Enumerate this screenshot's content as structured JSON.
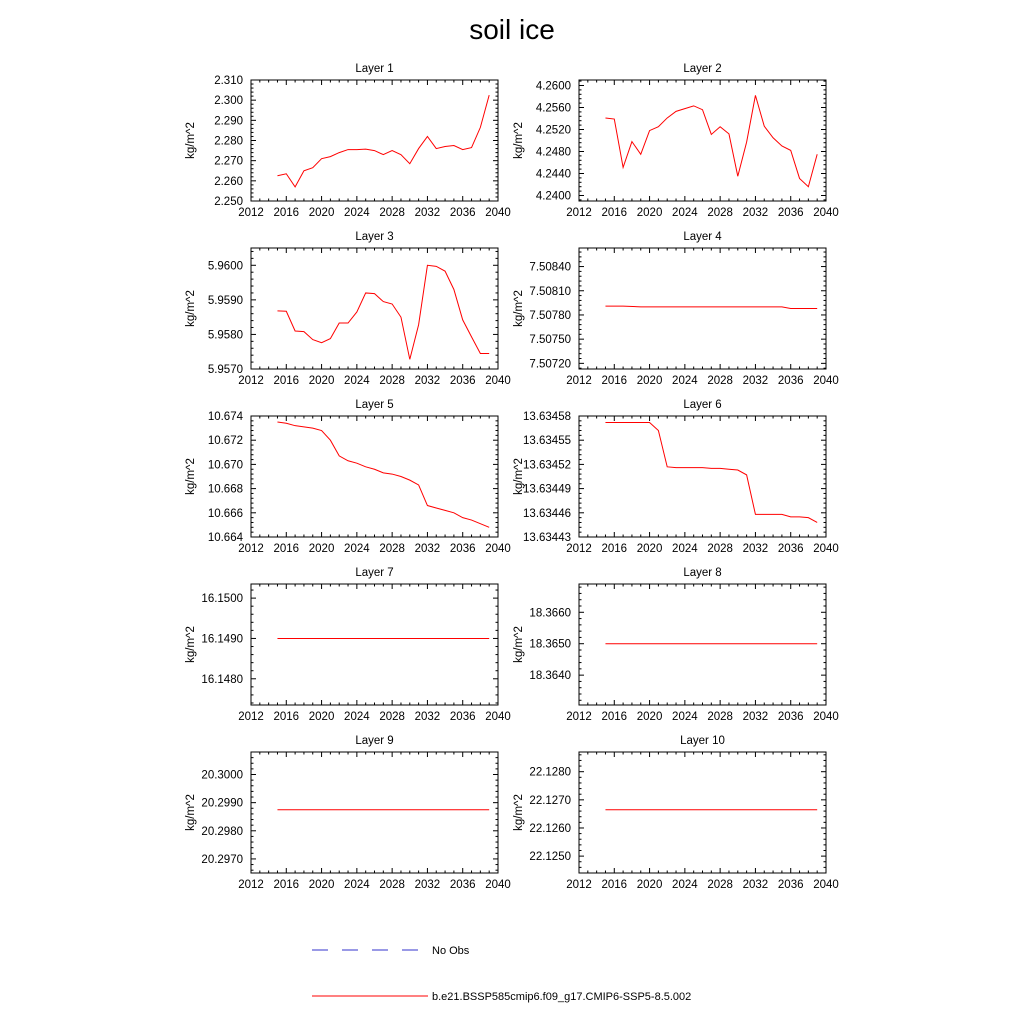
{
  "title": "soil ice",
  "colors": {
    "series": "#ff0000",
    "obs": "#3333cc",
    "axis": "#000000"
  },
  "legend": [
    {
      "label": "No Obs",
      "style": "dashed",
      "color": "#3333cc"
    },
    {
      "label": "b.e21.BSSP585cmip6.f09_g17.CMIP6-SSP5-8.5.002",
      "style": "solid",
      "color": "#ff0000"
    }
  ],
  "chart_data": [
    {
      "type": "line",
      "title": "Layer 1",
      "ylabel": "kg/m^2",
      "xlim": [
        2012,
        2040
      ],
      "ylim": [
        2.25,
        2.31
      ],
      "xticks": [
        2012,
        2016,
        2020,
        2024,
        2028,
        2032,
        2036,
        2040
      ],
      "xtick_labels": [
        "2012",
        "2016",
        "2020",
        "2024",
        "2028",
        "2032",
        "2036",
        "2040"
      ],
      "yticks": [
        2.25,
        2.26,
        2.27,
        2.28,
        2.29,
        2.3,
        2.31
      ],
      "ytick_labels": [
        "2.250",
        "2.260",
        "2.270",
        "2.280",
        "2.290",
        "2.300",
        "2.310"
      ],
      "series": [
        {
          "x": [
            2015,
            2016,
            2017,
            2018,
            2019,
            2020,
            2021,
            2022,
            2023,
            2024,
            2025,
            2026,
            2027,
            2028,
            2029,
            2030,
            2031,
            2032,
            2033,
            2034,
            2035,
            2036,
            2037,
            2038,
            2039
          ],
          "y": [
            2.2625,
            2.2635,
            2.257,
            2.265,
            2.2665,
            2.271,
            2.272,
            2.274,
            2.2755,
            2.2755,
            2.2757,
            2.275,
            2.273,
            2.275,
            2.273,
            2.2685,
            2.276,
            2.282,
            2.276,
            2.277,
            2.2775,
            2.2755,
            2.2765,
            2.2865,
            2.3025
          ]
        }
      ]
    },
    {
      "type": "line",
      "title": "Layer 2",
      "ylabel": "kg/m^2",
      "xlim": [
        2012,
        2040
      ],
      "ylim": [
        4.239,
        4.261
      ],
      "xticks": [
        2012,
        2016,
        2020,
        2024,
        2028,
        2032,
        2036,
        2040
      ],
      "xtick_labels": [
        "2012",
        "2016",
        "2020",
        "2024",
        "2028",
        "2032",
        "2036",
        "2040"
      ],
      "yticks": [
        4.24,
        4.244,
        4.248,
        4.252,
        4.256,
        4.26
      ],
      "ytick_labels": [
        "4.2400",
        "4.2440",
        "4.2480",
        "4.2520",
        "4.2560",
        "4.2600"
      ],
      "series": [
        {
          "x": [
            2015,
            2016,
            2017,
            2018,
            2019,
            2020,
            2021,
            2022,
            2023,
            2024,
            2025,
            2026,
            2027,
            2028,
            2029,
            2030,
            2031,
            2032,
            2033,
            2034,
            2035,
            2036,
            2037,
            2038,
            2039
          ],
          "y": [
            4.2541,
            4.2539,
            4.2451,
            4.2498,
            4.2475,
            4.2518,
            4.2525,
            4.2541,
            4.2553,
            4.2558,
            4.2563,
            4.2556,
            4.2511,
            4.2525,
            4.2512,
            4.2435,
            4.2497,
            4.2582,
            4.2526,
            4.2505,
            4.249,
            4.2482,
            4.2431,
            4.2416,
            4.2475
          ]
        }
      ]
    },
    {
      "type": "line",
      "title": "Layer 3",
      "ylabel": "kg/m^2",
      "xlim": [
        2012,
        2040
      ],
      "ylim": [
        5.957,
        5.9605
      ],
      "xticks": [
        2012,
        2016,
        2020,
        2024,
        2028,
        2032,
        2036,
        2040
      ],
      "xtick_labels": [
        "2012",
        "2016",
        "2020",
        "2024",
        "2028",
        "2032",
        "2036",
        "2040"
      ],
      "yticks": [
        5.957,
        5.958,
        5.959,
        5.96
      ],
      "ytick_labels": [
        "5.9570",
        "5.9580",
        "5.9590",
        "5.9600"
      ],
      "series": [
        {
          "x": [
            2015,
            2016,
            2017,
            2018,
            2019,
            2020,
            2021,
            2022,
            2023,
            2024,
            2025,
            2026,
            2027,
            2028,
            2029,
            2030,
            2031,
            2032,
            2033,
            2034,
            2035,
            2036,
            2037,
            2038,
            2039
          ],
          "y": [
            5.95868,
            5.95867,
            5.9581,
            5.95808,
            5.95785,
            5.95776,
            5.95788,
            5.95833,
            5.95833,
            5.95865,
            5.9592,
            5.95918,
            5.95895,
            5.95888,
            5.9585,
            5.95728,
            5.95828,
            5.96,
            5.95997,
            5.95983,
            5.9593,
            5.95842,
            5.95793,
            5.95745,
            5.95745
          ]
        }
      ]
    },
    {
      "type": "line",
      "title": "Layer 4",
      "ylabel": "kg/m^2",
      "xlim": [
        2012,
        2040
      ],
      "ylim": [
        7.50713,
        7.50863
      ],
      "xticks": [
        2012,
        2016,
        2020,
        2024,
        2028,
        2032,
        2036,
        2040
      ],
      "xtick_labels": [
        "2012",
        "2016",
        "2020",
        "2024",
        "2028",
        "2032",
        "2036",
        "2040"
      ],
      "yticks": [
        7.5072,
        7.5075,
        7.5078,
        7.5081,
        7.5084
      ],
      "ytick_labels": [
        "7.50720",
        "7.50750",
        "7.50780",
        "7.50810",
        "7.50840"
      ],
      "series": [
        {
          "x": [
            2015,
            2017,
            2019,
            2021,
            2023,
            2025,
            2027,
            2029,
            2031,
            2033,
            2035,
            2036,
            2037,
            2039
          ],
          "y": [
            7.50791,
            7.50791,
            7.5079,
            7.5079,
            7.5079,
            7.5079,
            7.5079,
            7.5079,
            7.5079,
            7.5079,
            7.5079,
            7.50788,
            7.50788,
            7.50788
          ]
        }
      ]
    },
    {
      "type": "line",
      "title": "Layer 5",
      "ylabel": "kg/m^2",
      "xlim": [
        2012,
        2040
      ],
      "ylim": [
        10.664,
        10.674
      ],
      "xticks": [
        2012,
        2016,
        2020,
        2024,
        2028,
        2032,
        2036,
        2040
      ],
      "xtick_labels": [
        "2012",
        "2016",
        "2020",
        "2024",
        "2028",
        "2032",
        "2036",
        "2040"
      ],
      "yticks": [
        10.664,
        10.666,
        10.668,
        10.67,
        10.672,
        10.674
      ],
      "ytick_labels": [
        "10.664",
        "10.666",
        "10.668",
        "10.670",
        "10.672",
        "10.674"
      ],
      "series": [
        {
          "x": [
            2015,
            2016,
            2017,
            2018,
            2019,
            2020,
            2021,
            2022,
            2023,
            2024,
            2025,
            2026,
            2027,
            2028,
            2029,
            2030,
            2031,
            2032,
            2033,
            2034,
            2035,
            2036,
            2037,
            2038,
            2039
          ],
          "y": [
            10.6735,
            10.6734,
            10.6732,
            10.6731,
            10.673,
            10.6728,
            10.672,
            10.6707,
            10.6703,
            10.6701,
            10.6698,
            10.6696,
            10.6693,
            10.6692,
            10.669,
            10.6687,
            10.6683,
            10.6666,
            10.6664,
            10.6662,
            10.666,
            10.6656,
            10.6654,
            10.6651,
            10.6648
          ]
        }
      ]
    },
    {
      "type": "line",
      "title": "Layer 6",
      "ylabel": "kg/m^2",
      "xlim": [
        2012,
        2040
      ],
      "ylim": [
        13.63443,
        13.63458
      ],
      "xticks": [
        2012,
        2016,
        2020,
        2024,
        2028,
        2032,
        2036,
        2040
      ],
      "xtick_labels": [
        "2012",
        "2016",
        "2020",
        "2024",
        "2028",
        "2032",
        "2036",
        "2040"
      ],
      "yticks": [
        13.63443,
        13.63446,
        13.63449,
        13.63452,
        13.63455,
        13.63458
      ],
      "ytick_labels": [
        "13.63443",
        "13.63446",
        "13.63449",
        "13.63452",
        "13.63455",
        "13.63458"
      ],
      "series": [
        {
          "x": [
            2015,
            2016,
            2017,
            2018,
            2019,
            2020,
            2021,
            2022,
            2023,
            2024,
            2025,
            2026,
            2027,
            2028,
            2029,
            2030,
            2031,
            2032,
            2033,
            2034,
            2035,
            2036,
            2037,
            2038,
            2039
          ],
          "y": [
            13.634572,
            13.634572,
            13.634572,
            13.634572,
            13.634572,
            13.634572,
            13.634562,
            13.634517,
            13.634516,
            13.634516,
            13.634516,
            13.634516,
            13.634515,
            13.634515,
            13.634514,
            13.634513,
            13.634507,
            13.634458,
            13.634458,
            13.634458,
            13.634458,
            13.634455,
            13.634455,
            13.634454,
            13.634448
          ]
        }
      ]
    },
    {
      "type": "line",
      "title": "Layer 7",
      "ylabel": "kg/m^2",
      "xlim": [
        2012,
        2040
      ],
      "ylim": [
        16.14735,
        16.15035
      ],
      "xticks": [
        2012,
        2016,
        2020,
        2024,
        2028,
        2032,
        2036,
        2040
      ],
      "xtick_labels": [
        "2012",
        "2016",
        "2020",
        "2024",
        "2028",
        "2032",
        "2036",
        "2040"
      ],
      "yticks": [
        16.148,
        16.149,
        16.15
      ],
      "ytick_labels": [
        "16.1480",
        "16.1490",
        "16.1500"
      ],
      "series": [
        {
          "x": [
            2015,
            2039
          ],
          "y": [
            16.149,
            16.149
          ]
        }
      ]
    },
    {
      "type": "line",
      "title": "Layer 8",
      "ylabel": "kg/m^2",
      "xlim": [
        2012,
        2040
      ],
      "ylim": [
        18.36305,
        18.3669
      ],
      "xticks": [
        2012,
        2016,
        2020,
        2024,
        2028,
        2032,
        2036,
        2040
      ],
      "xtick_labels": [
        "2012",
        "2016",
        "2020",
        "2024",
        "2028",
        "2032",
        "2036",
        "2040"
      ],
      "yticks": [
        18.364,
        18.365,
        18.366
      ],
      "ytick_labels": [
        "18.3640",
        "18.3650",
        "18.3660"
      ],
      "series": [
        {
          "x": [
            2015,
            2039
          ],
          "y": [
            18.365,
            18.365
          ]
        }
      ]
    },
    {
      "type": "line",
      "title": "Layer 9",
      "ylabel": "kg/m^2",
      "xlim": [
        2012,
        2040
      ],
      "ylim": [
        20.2965,
        20.3008
      ],
      "xticks": [
        2012,
        2016,
        2020,
        2024,
        2028,
        2032,
        2036,
        2040
      ],
      "xtick_labels": [
        "2012",
        "2016",
        "2020",
        "2024",
        "2028",
        "2032",
        "2036",
        "2040"
      ],
      "yticks": [
        20.297,
        20.298,
        20.299,
        20.3
      ],
      "ytick_labels": [
        "20.2970",
        "20.2980",
        "20.2990",
        "20.3000"
      ],
      "series": [
        {
          "x": [
            2015,
            2039
          ],
          "y": [
            20.29875,
            20.29875
          ]
        }
      ]
    },
    {
      "type": "line",
      "title": "Layer 10",
      "ylabel": "kg/m^2",
      "xlim": [
        2012,
        2040
      ],
      "ylim": [
        22.1244,
        22.1287
      ],
      "xticks": [
        2012,
        2016,
        2020,
        2024,
        2028,
        2032,
        2036,
        2040
      ],
      "xtick_labels": [
        "2012",
        "2016",
        "2020",
        "2024",
        "2028",
        "2032",
        "2036",
        "2040"
      ],
      "yticks": [
        22.125,
        22.126,
        22.127,
        22.128
      ],
      "ytick_labels": [
        "22.1250",
        "22.1260",
        "22.1270",
        "22.1280"
      ],
      "series": [
        {
          "x": [
            2015,
            2039
          ],
          "y": [
            22.12665,
            22.12665
          ]
        }
      ]
    }
  ]
}
